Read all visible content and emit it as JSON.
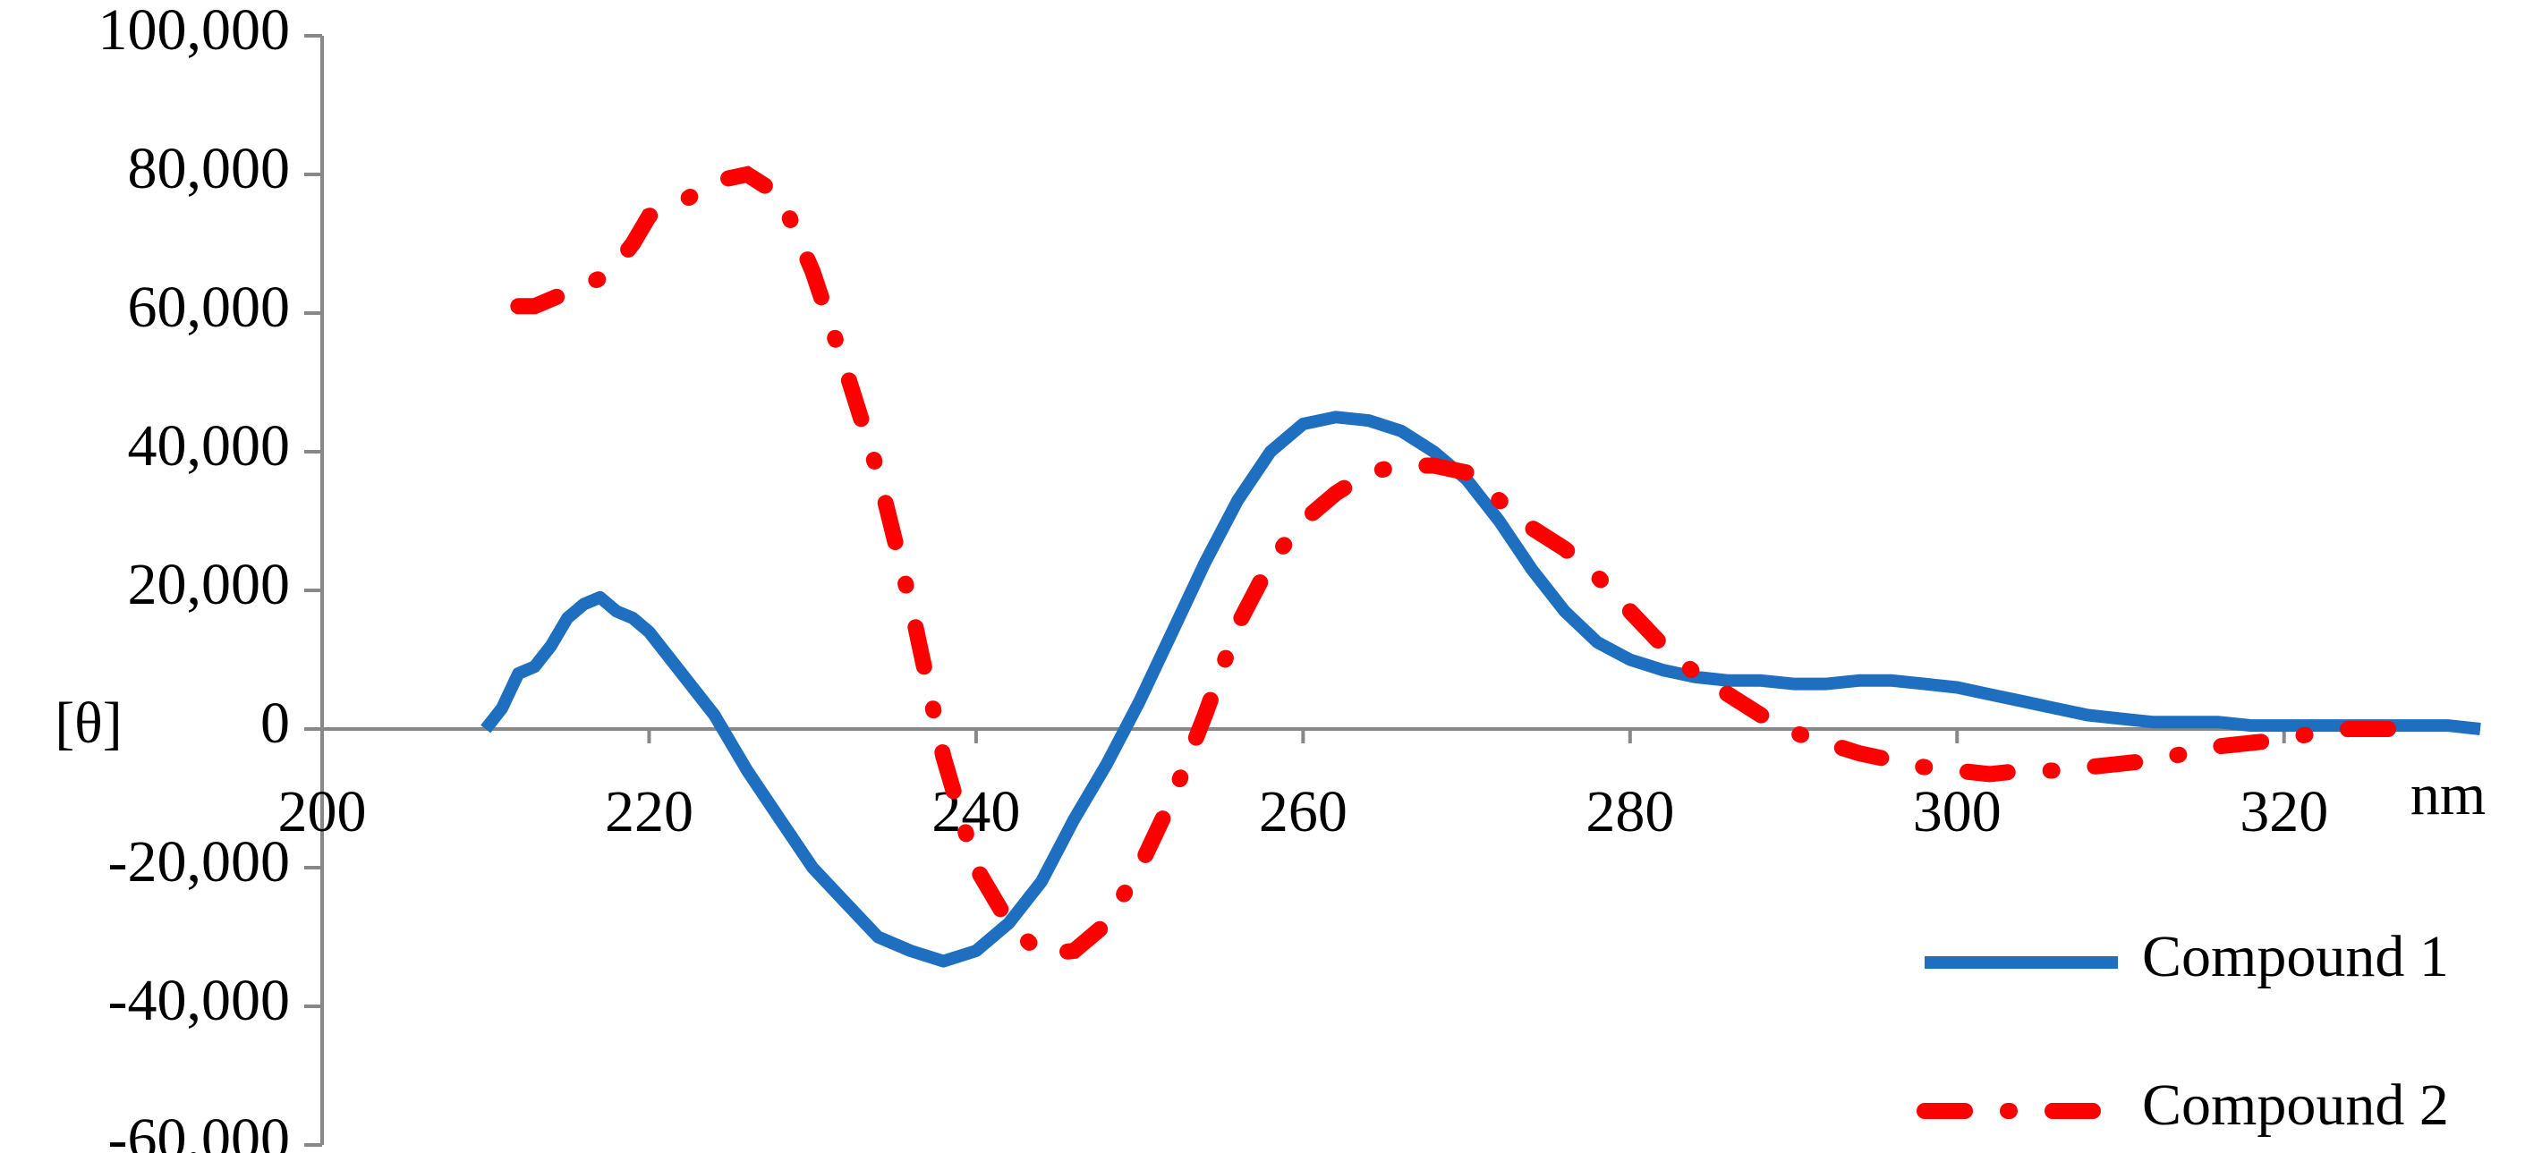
{
  "chart_data": {
    "type": "line",
    "x_label": "nm",
    "y_label": "[θ]",
    "x": [
      210,
      211,
      212,
      213,
      214,
      215,
      216,
      217,
      218,
      219,
      220,
      222,
      224,
      226,
      228,
      230,
      232,
      234,
      236,
      238,
      240,
      242,
      244,
      246,
      248,
      250,
      252,
      254,
      256,
      258,
      260,
      262,
      264,
      266,
      268,
      270,
      272,
      274,
      276,
      278,
      280,
      282,
      284,
      286,
      288,
      290,
      292,
      294,
      296,
      298,
      300,
      302,
      304,
      306,
      308,
      310,
      312,
      314,
      316,
      318,
      320,
      322,
      324,
      326,
      328,
      330,
      332
    ],
    "series": [
      {
        "name": "Compound 1",
        "color": "#1f6fc0",
        "line_style": "solid",
        "values": [
          0,
          3000,
          8000,
          9000,
          12000,
          16000,
          18000,
          19000,
          17000,
          16000,
          14000,
          8000,
          2000,
          -6000,
          -13000,
          -20000,
          -25000,
          -30000,
          -32000,
          -33500,
          -32000,
          -28000,
          -22000,
          -13000,
          -5000,
          4000,
          14000,
          24000,
          33000,
          40000,
          44000,
          45000,
          44500,
          43000,
          40000,
          36000,
          30000,
          23000,
          17000,
          12500,
          10000,
          8500,
          7500,
          7000,
          7000,
          6500,
          6500,
          7000,
          7000,
          6500,
          6000,
          5000,
          4000,
          3000,
          2000,
          1500,
          1000,
          1000,
          1000,
          500,
          500,
          500,
          500,
          500,
          500,
          500,
          0
        ]
      },
      {
        "name": "Compound 2",
        "color": "#ff0000",
        "line_style": "dash-dot",
        "values": [
          null,
          null,
          61000,
          61000,
          62000,
          63000,
          64000,
          65000,
          67000,
          70000,
          74000,
          76000,
          79000,
          80000,
          77000,
          66000,
          52000,
          37000,
          18000,
          -4000,
          -20000,
          -28000,
          -32500,
          -32000,
          -28000,
          -20000,
          -10000,
          2000,
          15000,
          24000,
          30000,
          34000,
          37000,
          38000,
          38000,
          37000,
          33000,
          29000,
          26000,
          22000,
          17000,
          12000,
          8000,
          5000,
          2000,
          -500,
          -2000,
          -3500,
          -4500,
          -5500,
          -6000,
          -6500,
          -6000,
          -6000,
          -5500,
          -5000,
          -4500,
          -3500,
          -2500,
          -2000,
          -1500,
          -500,
          0,
          0,
          0,
          null,
          null
        ]
      }
    ],
    "xlim": [
      200,
      332
    ],
    "xticks": [
      200,
      220,
      240,
      260,
      280,
      300,
      320
    ],
    "ylim": [
      -60000,
      100000
    ],
    "yticks": [
      {
        "value": -60000,
        "label": "-60,000"
      },
      {
        "value": -40000,
        "label": "-40,000"
      },
      {
        "value": -20000,
        "label": "-20,000"
      },
      0,
      {
        "value": 20000,
        "label": "20,000"
      },
      {
        "value": 40000,
        "label": "40,000"
      },
      {
        "value": 60000,
        "label": "60,000"
      },
      {
        "value": 80000,
        "label": "80,000"
      },
      {
        "value": 100000,
        "label": "100,000"
      }
    ],
    "grid": false,
    "legend": "lower right"
  }
}
